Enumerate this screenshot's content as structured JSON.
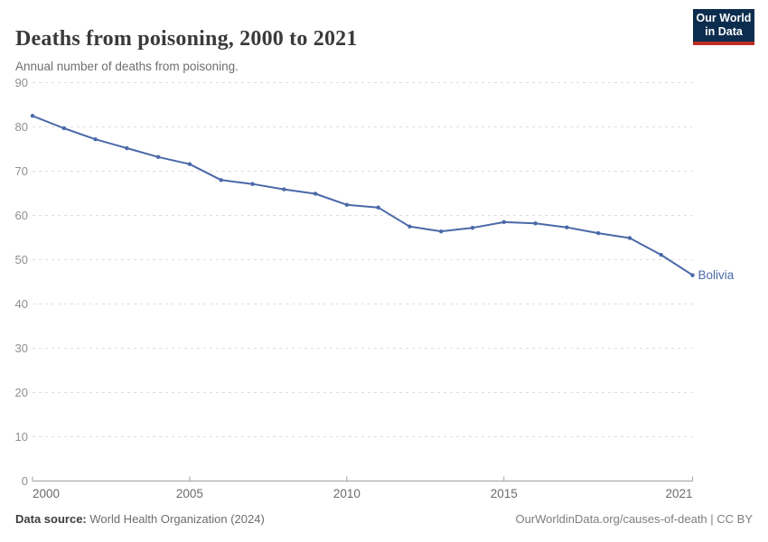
{
  "header": {
    "title": "Deaths from poisoning, 2000 to 2021",
    "subtitle": "Annual number of deaths from poisoning.",
    "logo": {
      "line1": "Our World",
      "line2": "in Data"
    }
  },
  "chart_data": {
    "type": "line",
    "title": "Deaths from poisoning, 2000 to 2021",
    "subtitle": "Annual number of deaths from poisoning.",
    "x": [
      2000,
      2001,
      2002,
      2003,
      2004,
      2005,
      2006,
      2007,
      2008,
      2009,
      2010,
      2011,
      2012,
      2013,
      2014,
      2015,
      2016,
      2017,
      2018,
      2019,
      2020,
      2021
    ],
    "series": [
      {
        "name": "Bolivia",
        "color": "#4a69a8",
        "values": [
          82.5,
          79.7,
          77.2,
          75.2,
          73.2,
          71.6,
          68.0,
          67.1,
          65.9,
          64.9,
          62.4,
          61.8,
          57.5,
          56.4,
          57.2,
          58.5,
          58.2,
          57.3,
          56.0,
          54.9,
          51.1,
          46.5
        ]
      }
    ],
    "xlabel": "",
    "ylabel": "",
    "xlim": [
      2000,
      2021
    ],
    "ylim": [
      0,
      90
    ],
    "y_ticks": [
      0,
      10,
      20,
      30,
      40,
      50,
      60,
      70,
      80,
      90
    ],
    "x_ticks": [
      2000,
      2005,
      2010,
      2015,
      2021
    ],
    "grid": "horizontal-dashed",
    "legend_position": "end-of-line-label",
    "end_label": "Bolivia"
  },
  "footer": {
    "source_label": "Data source:",
    "source_value": " World Health Organization (2024)",
    "credit": "OurWorldinData.org/causes-of-death | CC BY"
  },
  "colors": {
    "line": "#4a69a8",
    "logo_bg": "#0d2d4e",
    "logo_accent": "#bb2e25",
    "gridline": "#dedede",
    "axis": "#a1a1a1",
    "y_tick_label": "#8f8f8f",
    "x_tick_label": "#6b6b6b"
  }
}
